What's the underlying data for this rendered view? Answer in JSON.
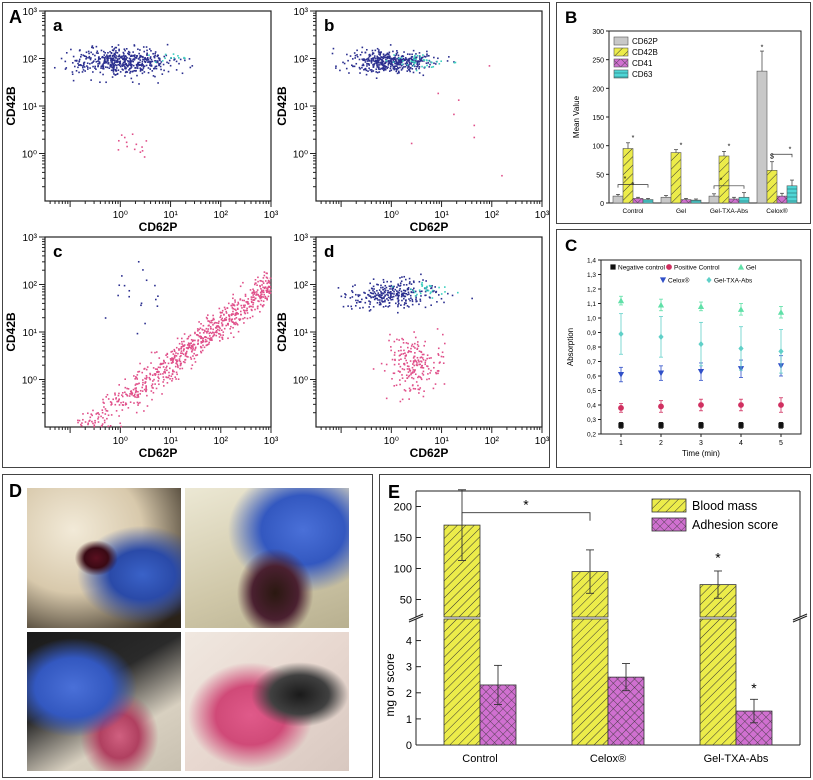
{
  "panel_letters": {
    "A": "A",
    "B": "B",
    "C": "C",
    "D": "D",
    "E": "E"
  },
  "flow_plots": [
    {
      "label": "a",
      "xlabel": "CD62P",
      "ylabel": "CD42B",
      "xticks": [
        "10⁰",
        "10¹",
        "10²",
        "10³"
      ],
      "yticks": [
        "10⁰",
        "10¹",
        "10²",
        "10³"
      ],
      "xlog_range": [
        -1.5,
        3
      ],
      "ylog_range": [
        -1,
        3
      ],
      "clusters": [
        {
          "kind": "blob",
          "cx": 0.0,
          "cy": 1.95,
          "sx": 0.5,
          "sy": 0.14,
          "n": 520,
          "color": "#2b2f8f"
        },
        {
          "kind": "blob",
          "cx": 0.9,
          "cy": 2.05,
          "sx": 0.25,
          "sy": 0.05,
          "n": 12,
          "color": "#3ccfbf"
        },
        {
          "kind": "blob",
          "cx": 0.25,
          "cy": 0.2,
          "sx": 0.2,
          "sy": 0.15,
          "n": 14,
          "color": "#e0508a"
        }
      ]
    },
    {
      "label": "b",
      "xlabel": "CD62P",
      "ylabel": "CD42B",
      "xticks": [
        "10⁰",
        "10¹",
        "10²",
        "10³"
      ],
      "yticks": [
        "10⁰",
        "10¹",
        "10²",
        "10³"
      ],
      "xlog_range": [
        -1.5,
        3
      ],
      "ylog_range": [
        -1,
        3
      ],
      "clusters": [
        {
          "kind": "blob",
          "cx": -0.05,
          "cy": 1.95,
          "sx": 0.4,
          "sy": 0.12,
          "n": 440,
          "color": "#2b2f8f"
        },
        {
          "kind": "blob",
          "cx": 0.65,
          "cy": 1.95,
          "sx": 0.35,
          "sy": 0.07,
          "n": 40,
          "color": "#3ccfbf"
        },
        {
          "kind": "blob",
          "cx": 1.4,
          "cy": 0.8,
          "sx": 0.6,
          "sy": 0.6,
          "n": 8,
          "color": "#e0508a"
        }
      ]
    },
    {
      "label": "c",
      "xlabel": "CD62P",
      "ylabel": "CD42B",
      "xticks": [
        "10⁰",
        "10¹",
        "10²",
        "10³"
      ],
      "yticks": [
        "10⁰",
        "10¹",
        "10²",
        "10³"
      ],
      "xlog_range": [
        -1.5,
        3
      ],
      "ylog_range": [
        -1,
        3
      ],
      "clusters": [
        {
          "kind": "diag",
          "x0": -1.2,
          "x1": 3.0,
          "slope": 0.82,
          "intercept": -0.45,
          "spread": 0.18,
          "n": 820,
          "color": "#e0508a"
        },
        {
          "kind": "blob",
          "cx": 0.3,
          "cy": 1.55,
          "sx": 0.4,
          "sy": 0.4,
          "n": 18,
          "color": "#2b2f8f"
        }
      ]
    },
    {
      "label": "d",
      "xlabel": "CD62P",
      "ylabel": "CD42B",
      "xticks": [
        "10⁰",
        "10¹",
        "10²",
        "10³"
      ],
      "yticks": [
        "10⁰",
        "10¹",
        "10²",
        "10³"
      ],
      "xlog_range": [
        -1.5,
        3
      ],
      "ylog_range": [
        -1,
        3
      ],
      "clusters": [
        {
          "kind": "blob",
          "cx": 0.0,
          "cy": 1.8,
          "sx": 0.45,
          "sy": 0.13,
          "n": 300,
          "color": "#2b2f8f"
        },
        {
          "kind": "blob",
          "cx": 0.7,
          "cy": 1.9,
          "sx": 0.25,
          "sy": 0.07,
          "n": 30,
          "color": "#3ccfbf"
        },
        {
          "kind": "blob",
          "cx": 0.45,
          "cy": 0.35,
          "sx": 0.28,
          "sy": 0.3,
          "n": 210,
          "color": "#e0508a"
        }
      ]
    }
  ],
  "chart_data": [
    {
      "id": "B",
      "type": "bar",
      "title": "",
      "ylabel": "Mean Value",
      "ylim": [
        0,
        300
      ],
      "yticks": [
        0,
        50,
        100,
        150,
        200,
        250,
        300
      ],
      "categories": [
        "Control",
        "Gel",
        "Gel-TXA-Abs",
        "Celox®"
      ],
      "series": [
        {
          "name": "CD62P",
          "color": "#c8c8c8",
          "pattern": "none",
          "values": [
            12,
            10,
            12,
            230
          ],
          "errors": [
            3,
            3,
            4,
            35
          ]
        },
        {
          "name": "CD42B",
          "color": "#ecec4a",
          "pattern": "diag",
          "values": [
            95,
            88,
            82,
            57
          ],
          "errors": [
            10,
            5,
            8,
            15
          ]
        },
        {
          "name": "CD41",
          "color": "#d05ad0",
          "pattern": "cross",
          "values": [
            8,
            6,
            7,
            12
          ],
          "errors": [
            2,
            2,
            3,
            5
          ]
        },
        {
          "name": "CD63",
          "color": "#4fd6d6",
          "pattern": "hline",
          "values": [
            6,
            5,
            10,
            30
          ],
          "errors": [
            2,
            2,
            8,
            10
          ]
        }
      ],
      "annotations": [
        "*",
        "*",
        "*",
        "*",
        "*",
        "*",
        "*",
        "*",
        "$"
      ]
    },
    {
      "id": "C",
      "type": "scatter",
      "xlabel": "Time (min)",
      "ylabel": "Absorption",
      "xlim": [
        0.5,
        5.5
      ],
      "ylim": [
        0.2,
        1.4
      ],
      "xticks": [
        1,
        2,
        3,
        4,
        5
      ],
      "yticks": [
        "0,2",
        "0,3",
        "0,4",
        "0,5",
        "0,6",
        "0,7",
        "0,8",
        "0,9",
        "1,0",
        "1,1",
        "1,2",
        "1,3",
        "1,4"
      ],
      "series": [
        {
          "name": "Negative control",
          "marker": "square",
          "color": "#111111",
          "x": [
            1,
            2,
            3,
            4,
            5
          ],
          "y": [
            0.26,
            0.26,
            0.26,
            0.26,
            0.26
          ],
          "err": [
            0.02,
            0.02,
            0.02,
            0.02,
            0.02
          ]
        },
        {
          "name": "Positive Control",
          "marker": "circle",
          "color": "#d03060",
          "x": [
            1,
            2,
            3,
            4,
            5
          ],
          "y": [
            0.38,
            0.39,
            0.4,
            0.4,
            0.4
          ],
          "err": [
            0.03,
            0.04,
            0.04,
            0.04,
            0.05
          ]
        },
        {
          "name": "Gel",
          "marker": "triangle",
          "color": "#60e0a8",
          "x": [
            1,
            2,
            3,
            4,
            5
          ],
          "y": [
            1.12,
            1.09,
            1.08,
            1.06,
            1.04
          ],
          "err": [
            0.03,
            0.04,
            0.03,
            0.04,
            0.04
          ]
        },
        {
          "name": "Celox®",
          "marker": "triangle-down",
          "color": "#3050c8",
          "x": [
            1,
            2,
            3,
            4,
            5
          ],
          "y": [
            0.61,
            0.62,
            0.63,
            0.65,
            0.67
          ],
          "err": [
            0.05,
            0.05,
            0.06,
            0.06,
            0.07
          ]
        },
        {
          "name": "Gel-TXA-Abs",
          "marker": "diamond",
          "color": "#60d0c8",
          "x": [
            1,
            2,
            3,
            4,
            5
          ],
          "y": [
            0.89,
            0.87,
            0.82,
            0.79,
            0.77
          ],
          "err": [
            0.14,
            0.14,
            0.15,
            0.15,
            0.15
          ]
        }
      ]
    },
    {
      "id": "E",
      "type": "bar",
      "ylabel": "mg or score",
      "broken_axis": true,
      "categories": [
        "Control",
        "Celox®",
        "Gel-TXA-Abs"
      ],
      "upper_ylim": [
        25,
        225
      ],
      "upper_ticks": [
        50,
        100,
        150,
        200
      ],
      "lower_ylim": [
        0,
        4.75
      ],
      "lower_ticks": [
        0,
        1,
        2,
        3,
        4
      ],
      "series": [
        {
          "name": "Blood mass",
          "color": "#ecec4a",
          "pattern": "diag",
          "values": [
            170,
            95,
            74
          ],
          "errors": [
            57,
            35,
            22
          ]
        },
        {
          "name": "Adhesion score",
          "color": "#d070d0",
          "pattern": "cross",
          "values": [
            2.3,
            2.6,
            1.3
          ],
          "errors": [
            0.75,
            0.52,
            0.45
          ]
        }
      ],
      "significance": {
        "bracket": [
          "Control",
          "Celox®"
        ],
        "mark": "*"
      },
      "star_marks": [
        "*",
        "*"
      ]
    }
  ]
}
